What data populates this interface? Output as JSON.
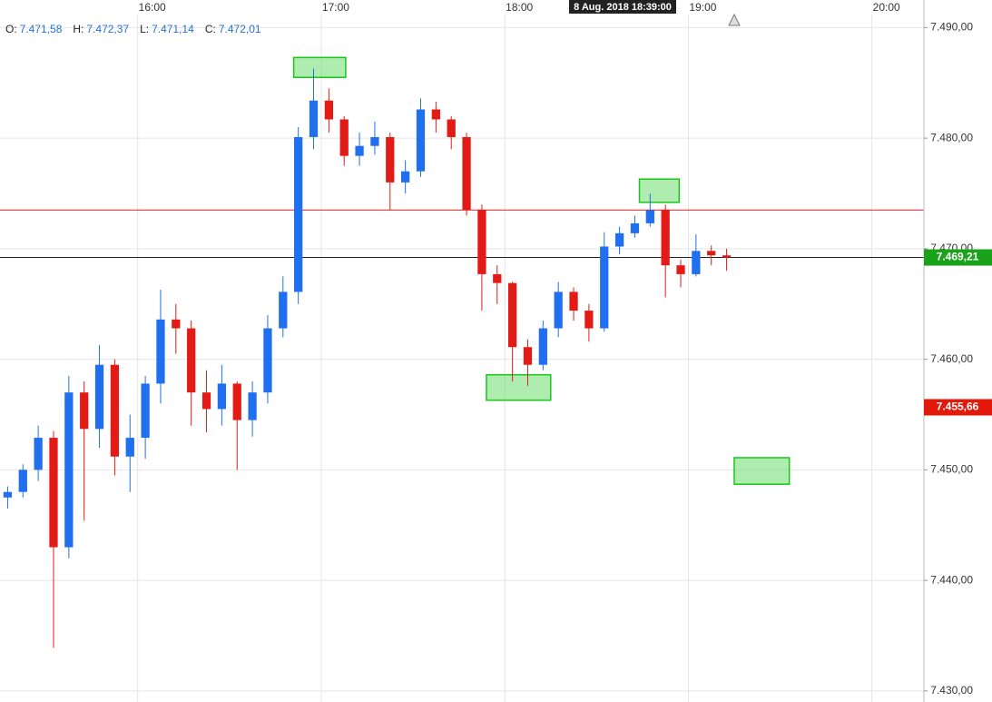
{
  "chart_data": {
    "type": "candlestick",
    "info": [
      {
        "label": "O:",
        "text": "7.471,58"
      },
      {
        "label": "H:",
        "text": "7.472,37"
      },
      {
        "label": "L:",
        "text": "7.471,14"
      },
      {
        "label": "C:",
        "text": "7.472,01"
      }
    ],
    "crosshair_label": "8 Aug. 2018 18:39:00",
    "x": [
      "15:15",
      "15:20",
      "15:25",
      "15:30",
      "15:35",
      "15:40",
      "15:45",
      "15:50",
      "15:55",
      "16:00",
      "16:05",
      "16:10",
      "16:15",
      "16:20",
      "16:25",
      "16:30",
      "16:35",
      "16:40",
      "16:45",
      "16:50",
      "16:55",
      "17:00",
      "17:05",
      "17:10",
      "17:15",
      "17:20",
      "17:25",
      "17:30",
      "17:35",
      "17:40",
      "17:45",
      "17:50",
      "17:55",
      "18:00",
      "18:05",
      "18:10",
      "18:15",
      "18:20",
      "18:25",
      "18:30",
      "18:35",
      "18:40",
      "18:45",
      "18:50",
      "18:55",
      "19:00",
      "19:05",
      "19:10"
    ],
    "open": [
      7447.5,
      7448,
      7450,
      7452.9,
      7443,
      7457,
      7453.7,
      7459.5,
      7451.2,
      7452.9,
      7457.8,
      7463.6,
      7462.8,
      7457,
      7455.5,
      7457.8,
      7454.5,
      7457,
      7462.8,
      7466.1,
      7480.1,
      7483.4,
      7481.7,
      7478.4,
      7479.3,
      7480.1,
      7476,
      7477,
      7482.6,
      7481.7,
      7480.1,
      7473.5,
      7467.7,
      7466.9,
      7461.1,
      7459.5,
      7462.8,
      7466.1,
      7464.4,
      7462.8,
      7470.2,
      7471.4,
      7472.3,
      7473.5,
      7468.5,
      7467.7,
      7469.8,
      7469.4
    ],
    "high": [
      7448.5,
      7450.5,
      7454,
      7453.5,
      7458.5,
      7458,
      7461.3,
      7460,
      7455,
      7458.5,
      7466.3,
      7465,
      7463.5,
      7459,
      7459.5,
      7458,
      7458,
      7464,
      7467.5,
      7481,
      7486.3,
      7484.5,
      7482,
      7480.5,
      7481.5,
      7480.5,
      7478,
      7483.6,
      7483.3,
      7482,
      7480.5,
      7474,
      7468.5,
      7467,
      7461.8,
      7463.5,
      7467,
      7466.5,
      7465,
      7471.5,
      7472,
      7473,
      7475,
      7474,
      7469,
      7471.3,
      7470.3,
      7470
    ],
    "low": [
      7446.5,
      7447.5,
      7449,
      7433.9,
      7442,
      7445.4,
      7452,
      7449.5,
      7448,
      7451,
      7456,
      7460.5,
      7454,
      7453.4,
      7454,
      7450,
      7453,
      7456,
      7462,
      7465,
      7479,
      7480.5,
      7477.5,
      7477.5,
      7478.5,
      7473.5,
      7475,
      7476.5,
      7480.5,
      7479,
      7473,
      7464.4,
      7465,
      7458,
      7457.6,
      7459,
      7462,
      7463.5,
      7461.6,
      7462.5,
      7469.5,
      7471,
      7472,
      7465.6,
      7466.5,
      7467.5,
      7468.5,
      7468
    ],
    "close": [
      7448,
      7450,
      7452.9,
      7443,
      7457,
      7453.7,
      7459.5,
      7451.2,
      7452.9,
      7457.8,
      7463.6,
      7462.8,
      7457,
      7455.5,
      7457.8,
      7454.5,
      7457,
      7462.8,
      7466.1,
      7480.1,
      7483.4,
      7481.7,
      7478.4,
      7479.3,
      7480.1,
      7476,
      7477,
      7482.6,
      7481.7,
      7480.1,
      7473.5,
      7467.7,
      7466.9,
      7461.1,
      7459.5,
      7462.8,
      7466.1,
      7464.4,
      7462.8,
      7470.2,
      7471.4,
      7472.3,
      7473.5,
      7468.5,
      7467.7,
      7469.8,
      7469.4,
      7469.21
    ],
    "up_color": "#1f6fef",
    "down_color": "#e31b17",
    "xlim": [
      "15:15",
      "20:17"
    ],
    "xticks": [
      "16:00",
      "17:00",
      "18:00",
      "19:00",
      "20:00"
    ],
    "ylim": [
      7429,
      7492.5
    ],
    "yticks": [
      {
        "value": 7430,
        "label": "7.430,00"
      },
      {
        "value": 7440,
        "label": "7.440,00"
      },
      {
        "value": 7450,
        "label": "7.450,00"
      },
      {
        "value": 7460,
        "label": "7.460,00"
      },
      {
        "value": 7470,
        "label": "7.470,00"
      },
      {
        "value": 7480,
        "label": "7.480,00"
      },
      {
        "value": 7490,
        "label": "7.490,00"
      }
    ],
    "grid": true,
    "hlines": [
      {
        "value": 7473.5,
        "color": "#d42020"
      },
      {
        "value": 7469.21,
        "color": "#222222"
      }
    ],
    "price_labels": [
      {
        "value": 7469.21,
        "label": "7.469,21",
        "color": "#1aa31a"
      },
      {
        "value": 7455.66,
        "label": "7.455,66",
        "color": "#e3170a"
      }
    ],
    "zones": [
      {
        "x": [
          "16:51",
          "17:08"
        ],
        "y": [
          7485.5,
          7487.3
        ]
      },
      {
        "x": [
          "18:44",
          "18:57"
        ],
        "y": [
          7474.2,
          7476.3
        ]
      },
      {
        "x": [
          "17:54",
          "18:15"
        ],
        "y": [
          7456.3,
          7458.6
        ]
      },
      {
        "x": [
          "19:15",
          "19:33"
        ],
        "y": [
          7448.7,
          7451.1
        ]
      }
    ]
  }
}
